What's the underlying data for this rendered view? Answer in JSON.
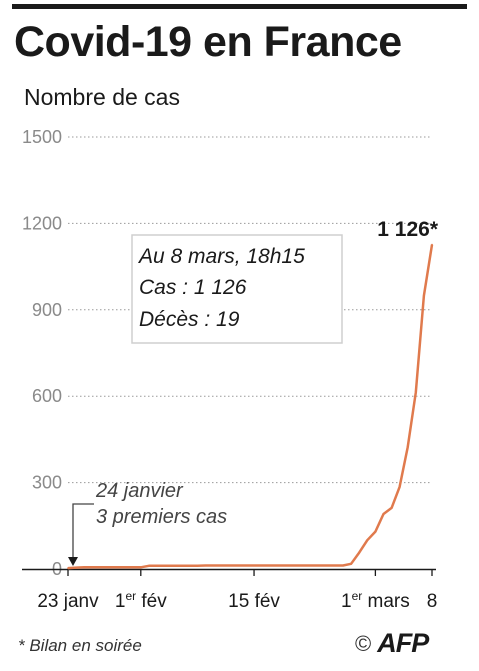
{
  "header": {
    "title": "Covid-19 en France",
    "subtitle": "Nombre de cas"
  },
  "chart_data": {
    "type": "line",
    "title": "Covid-19 en France",
    "ylabel": "Nombre de cas",
    "ylim": [
      0,
      1500
    ],
    "yticks": [
      "1500",
      "1200",
      "900",
      "600",
      "300",
      "0"
    ],
    "ytick_values": [
      1500,
      1200,
      900,
      600,
      300,
      0
    ],
    "xticks": [
      {
        "label": "23 janv",
        "sup": "",
        "after": "",
        "day": 0
      },
      {
        "label": "1",
        "sup": "er",
        "after": " fév",
        "day": 9
      },
      {
        "label": "15 fév",
        "sup": "",
        "after": "",
        "day": 23
      },
      {
        "label": "1",
        "sup": "er",
        "after": " mars",
        "day": 38
      },
      {
        "label": "8",
        "sup": "",
        "after": "",
        "day": 45
      }
    ],
    "grid": "horizontal-dotted",
    "series": [
      {
        "name": "Cas",
        "color": "#e07a4d",
        "x": [
          0,
          1,
          2,
          8,
          9,
          10,
          16,
          17,
          18,
          34,
          35,
          36,
          37,
          38,
          39,
          40,
          41,
          42,
          43,
          44,
          45
        ],
        "y": [
          3,
          5,
          6,
          6,
          6,
          11,
          11,
          12,
          12,
          12,
          18,
          57,
          100,
          130,
          191,
          212,
          285,
          423,
          613,
          949,
          1126
        ]
      }
    ],
    "annotations": {
      "last_value": "1 126*",
      "infobox": [
        "Au 8 mars, 18h15",
        "Cas : 1 126",
        "Décès : 19"
      ],
      "first_cases": [
        "24 janvier",
        "3 premiers cas"
      ]
    }
  },
  "footer": {
    "note": "* Bilan en soirée",
    "copyright": "©",
    "logo": "AFP"
  }
}
